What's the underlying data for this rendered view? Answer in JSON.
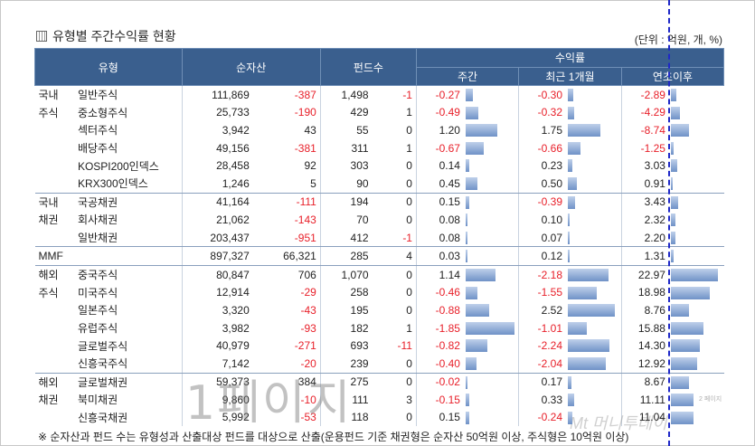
{
  "title": "유형별 주간수익률 현황",
  "unit": "(단위 : 억원, 개, %)",
  "headers": {
    "type": "유형",
    "net_assets": "순자산",
    "fund_count": "펀드수",
    "returns": "수익률",
    "weekly": "주간",
    "month1": "최근 1개월",
    "ytd": "연초이후"
  },
  "rows": [
    {
      "g1": "국내",
      "g2": "",
      "name": "일반주식",
      "na": "111,869",
      "nac": "-387",
      "fc": "1,498",
      "fcc": "-1",
      "w": "-0.27",
      "m": "-0.30",
      "y": "-2.89",
      "wv": -0.27,
      "mv": -0.3,
      "yv": -2.89
    },
    {
      "g1": "주식",
      "g2": "",
      "name": "중소형주식",
      "na": "25,733",
      "nac": "-190",
      "fc": "429",
      "fcc": "1",
      "w": "-0.49",
      "m": "-0.32",
      "y": "-4.29",
      "wv": -0.49,
      "mv": -0.32,
      "yv": -4.29
    },
    {
      "g1": "",
      "g2": "",
      "name": "섹터주식",
      "na": "3,942",
      "nac": "43",
      "fc": "55",
      "fcc": "0",
      "w": "1.20",
      "m": "1.75",
      "y": "-8.74",
      "wv": 1.2,
      "mv": 1.75,
      "yv": -8.74
    },
    {
      "g1": "",
      "g2": "",
      "name": "배당주식",
      "na": "49,156",
      "nac": "-381",
      "fc": "311",
      "fcc": "1",
      "w": "-0.67",
      "m": "-0.66",
      "y": "-1.25",
      "wv": -0.67,
      "mv": -0.66,
      "yv": -1.25
    },
    {
      "g1": "",
      "g2": "",
      "name": "KOSPI200인덱스",
      "na": "28,458",
      "nac": "92",
      "fc": "303",
      "fcc": "0",
      "w": "0.14",
      "m": "0.23",
      "y": "3.03",
      "wv": 0.14,
      "mv": 0.23,
      "yv": 3.03
    },
    {
      "g1": "",
      "g2": "",
      "name": "KRX300인덱스",
      "na": "1,246",
      "nac": "5",
      "fc": "90",
      "fcc": "0",
      "w": "0.45",
      "m": "0.50",
      "y": "0.91",
      "wv": 0.45,
      "mv": 0.5,
      "yv": 0.91
    },
    {
      "g1": "국내",
      "g2": "",
      "name": "국공채권",
      "na": "41,164",
      "nac": "-111",
      "fc": "194",
      "fcc": "0",
      "w": "0.15",
      "m": "-0.39",
      "y": "3.43",
      "wv": 0.15,
      "mv": -0.39,
      "yv": 3.43
    },
    {
      "g1": "채권",
      "g2": "",
      "name": "회사채권",
      "na": "21,062",
      "nac": "-143",
      "fc": "70",
      "fcc": "0",
      "w": "0.08",
      "m": "0.10",
      "y": "2.32",
      "wv": 0.08,
      "mv": 0.1,
      "yv": 2.32
    },
    {
      "g1": "",
      "g2": "",
      "name": "일반채권",
      "na": "203,437",
      "nac": "-951",
      "fc": "412",
      "fcc": "-1",
      "w": "0.08",
      "m": "0.07",
      "y": "2.20",
      "wv": 0.08,
      "mv": 0.07,
      "yv": 2.2
    },
    {
      "g1": "MMF",
      "g2": "",
      "name": "",
      "na": "897,327",
      "nac": "66,321",
      "fc": "285",
      "fcc": "4",
      "w": "0.03",
      "m": "0.12",
      "y": "1.31",
      "wv": 0.03,
      "mv": 0.12,
      "yv": 1.31
    },
    {
      "g1": "해외",
      "g2": "",
      "name": "중국주식",
      "na": "80,847",
      "nac": "706",
      "fc": "1,070",
      "fcc": "0",
      "w": "1.14",
      "m": "-2.18",
      "y": "22.97",
      "wv": 1.14,
      "mv": -2.18,
      "yv": 22.97
    },
    {
      "g1": "주식",
      "g2": "",
      "name": "미국주식",
      "na": "12,914",
      "nac": "-29",
      "fc": "258",
      "fcc": "0",
      "w": "-0.46",
      "m": "-1.55",
      "y": "18.98",
      "wv": -0.46,
      "mv": -1.55,
      "yv": 18.98
    },
    {
      "g1": "",
      "g2": "",
      "name": "일본주식",
      "na": "3,320",
      "nac": "-43",
      "fc": "195",
      "fcc": "0",
      "w": "-0.88",
      "m": "2.52",
      "y": "8.76",
      "wv": -0.88,
      "mv": 2.52,
      "yv": 8.76
    },
    {
      "g1": "",
      "g2": "",
      "name": "유럽주식",
      "na": "3,982",
      "nac": "-93",
      "fc": "182",
      "fcc": "1",
      "w": "-1.85",
      "m": "-1.01",
      "y": "15.88",
      "wv": -1.85,
      "mv": -1.01,
      "yv": 15.88
    },
    {
      "g1": "",
      "g2": "",
      "name": "글로벌주식",
      "na": "40,979",
      "nac": "-271",
      "fc": "693",
      "fcc": "-11",
      "w": "-0.82",
      "m": "-2.24",
      "y": "14.30",
      "wv": -0.82,
      "mv": -2.24,
      "yv": 14.3
    },
    {
      "g1": "",
      "g2": "",
      "name": "신흥국주식",
      "na": "7,142",
      "nac": "-20",
      "fc": "239",
      "fcc": "0",
      "w": "-0.40",
      "m": "-2.04",
      "y": "12.92",
      "wv": -0.4,
      "mv": -2.04,
      "yv": 12.92
    },
    {
      "g1": "해외",
      "g2": "",
      "name": "글로벌채권",
      "na": "59,373",
      "nac": "384",
      "fc": "275",
      "fcc": "0",
      "w": "-0.02",
      "m": "0.17",
      "y": "8.67",
      "wv": -0.02,
      "mv": 0.17,
      "yv": 8.67
    },
    {
      "g1": "채권",
      "g2": "",
      "name": "북미채권",
      "na": "9,860",
      "nac": "-10",
      "fc": "111",
      "fcc": "3",
      "w": "-0.15",
      "m": "0.33",
      "y": "11.11",
      "wv": -0.15,
      "mv": 0.33,
      "yv": 11.11
    },
    {
      "g1": "",
      "g2": "",
      "name": "신흥국채권",
      "na": "5,992",
      "nac": "-53",
      "fc": "118",
      "fcc": "0",
      "w": "0.15",
      "m": "-0.24",
      "y": "11.04",
      "wv": 0.15,
      "mv": -0.24,
      "yv": 11.04
    }
  ],
  "note": "※ 순자산과 펀드 수는 유형성과 산출대상 펀드를 대상으로 산출(운용펀드 기준 채권형은 순자산 50억원 이상, 주식형은 10억원 이상)",
  "watermark_page": "1페이지",
  "watermark_logo": "Mt 머니투데이",
  "watermark_small": "2 페이지"
}
